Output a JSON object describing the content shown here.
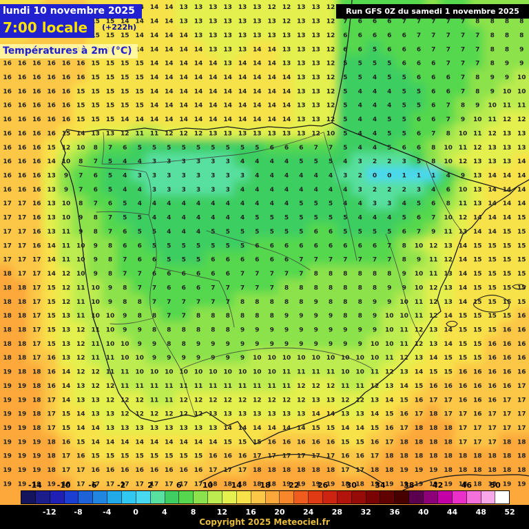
{
  "header": {
    "date_line": "lundi 10 novembre 2025",
    "time_line": "7:00 locale",
    "forecast_offset": "(+222h)",
    "variable_line": "Températures à 2m (°C)",
    "run_info": "Run GFS 0Z du samedi 1 novembre 2025"
  },
  "footer": {
    "copyright": "Copyright 2025 Meteociel.fr",
    "scale_top_labels": [
      -14,
      -10,
      -6,
      -2,
      2,
      6,
      10,
      14,
      18,
      22,
      26,
      30,
      34,
      38,
      42,
      46,
      50
    ],
    "scale_bottom_labels": [
      -12,
      -8,
      -4,
      0,
      4,
      8,
      12,
      16,
      20,
      24,
      28,
      32,
      36,
      40,
      44,
      48,
      52
    ]
  },
  "scale": {
    "min": -16,
    "max": 52,
    "step": 2,
    "colors": [
      "#14145e",
      "#1c1c8a",
      "#2020b4",
      "#1c3ed0",
      "#1e62d8",
      "#2086e0",
      "#22aae8",
      "#30c8f0",
      "#48d8f0",
      "#58e0a0",
      "#3ece62",
      "#55d84e",
      "#8ce24c",
      "#bcec50",
      "#e4f04e",
      "#f8e24a",
      "#fcc646",
      "#fca83a",
      "#f8862a",
      "#f05c1e",
      "#e03a14",
      "#cc2410",
      "#b2140c",
      "#960a08",
      "#7a0404",
      "#600202",
      "#460000",
      "#5a004e",
      "#8e007a",
      "#c200a6",
      "#ea30c8",
      "#f470da",
      "#f8a8e8",
      "#ffffff"
    ]
  },
  "colors": {
    "header_bg": "#2121cf",
    "header_text": "#ffffff",
    "time_text": "#ffe400",
    "variable_text": "#2121cf",
    "run_bg": "#000000",
    "run_text": "#ffffff",
    "number_text": "#222222",
    "copyright_text": "#e6bb3c",
    "band_bg": "#000000"
  },
  "chart_data": {
    "type": "heatmap",
    "title": "Températures à 2m (°C)",
    "units": "°C",
    "grid_cols": 36,
    "grid_rows": 36,
    "rows": [
      "15 15 15 16 16 16 15 15 14 14 14 14 13 13 13 13 13 13 12 12 13 13 12 7 7 6 6 7 7 8 7 7 8 8 8 8",
      "15 15 16 16 16 16 15 15 14 14 14 14 13 13 13 13 13 13 13 12 13 13 12 7 6 6 6 7 7 7 7 7 8 8 8 8",
      "15 15 16 16 16 16 15 15 15 14 14 14 14 13 13 13 13 13 13 13 13 13 12 6 6 6 6 6 7 7 7 7 7 8 8 8",
      "16 16 16 16 16 16 15 15 15 14 14 14 14 14 13 13 13 14 14 13 13 13 12 6 6 5 6 6 6 7 7 7 7 8 8 9",
      "16 16 16 16 16 16 15 15 15 15 14 14 14 14 14 13 14 14 14 13 13 13 12 5 5 5 5 6 6 6 7 7 7 8 9 9",
      "16 16 16 16 16 16 15 15 15 15 14 14 14 14 14 14 14 14 14 14 13 13 12 5 5 4 5 5 6 6 6 7 8 9 9 10",
      "16 16 16 16 16 15 15 15 15 15 14 14 14 14 14 14 14 14 14 14 13 13 12 5 4 4 4 5 5 6 6 7 8 9 10 10",
      "16 16 16 16 16 15 15 15 15 15 14 14 14 14 14 14 14 14 14 14 13 13 12 5 4 4 4 5 5 6 7 8 9 10 11 11",
      "16 16 16 16 16 15 15 15 14 14 14 14 14 14 14 14 14 14 14 14 13 13 12 5 4 4 5 5 6 6 7 9 10 11 12 12",
      "16 16 16 16 15 14 13 13 12 11 11 12 12 12 13 13 13 13 13 13 13 12 10 5 4 4 5 5 6 7 8 10 11 12 13 13",
      "16 16 16 15 12 10 8 7 6 5 5 5 5 5 5 5 5 5 6 6 6 7 7 5 4 4 5 6 6 8 10 11 12 13 13 13",
      "16 16 16 14 10 8 7 5 4 4 3 3 3 3 3 3 4 4 4 4 5 5 5 4 3 2 2 3 5 8 10 12 13 13 13 14",
      "16 16 16 13 9 7 6 5 4 3 3 3 3 3 3 3 3 4 4 4 4 4 4 3 2 0 0 1 1 1 4 9 13 14 14 14",
      "16 16 16 13 9 7 6 5 4 4 3 3 3 3 3 3 4 4 4 4 4 4 4 4 3 2 2 2 3 4 6 10 13 14 14 14",
      "17 17 16 13 10 8 7 6 5 4 4 4 4 4 4 4 4 4 4 4 5 5 5 4 4 3 3 4 5 6 8 11 13 14 14 14",
      "17 17 16 13 10 9 8 7 5 5 4 4 4 4 4 4 4 5 5 5 5 5 5 5 4 4 4 5 6 7 10 12 14 14 14 15",
      "17 17 16 13 11 9 8 7 6 5 5 4 4 4 5 5 5 5 5 5 5 6 6 5 5 5 5 6 7 9 11 13 14 14 15 15",
      "17 17 16 14 11 10 9 8 6 6 5 5 5 5 5 5 5 6 6 6 6 6 6 6 6 6 7 8 10 12 13 14 15 15 15 15",
      "17 17 17 14 11 10 9 8 7 6 6 5 5 5 6 6 6 6 6 6 7 7 7 7 7 7 7 8 9 11 12 14 15 15 15 15",
      "18 17 17 14 12 10 9 8 7 7 6 6 6 6 6 6 7 7 7 7 7 8 8 8 8 8 8 9 10 11 13 14 15 15 15 15",
      "18 18 17 15 12 11 10 9 8 7 7 6 6 6 7 7 7 7 7 8 8 8 8 8 8 8 9 9 10 12 13 14 15 15 15 15",
      "18 18 17 15 12 11 10 9 8 8 7 7 7 7 7 7 8 8 8 8 8 9 8 8 8 9 9 10 11 12 13 14 15 15 15 15",
      "18 18 17 15 13 11 10 10 9 8 8 7 7 8 8 8 8 8 8 9 9 9 9 8 8 9 10 10 11 12 14 15 15 15 15 16",
      "18 18 17 15 13 12 11 10 9 9 8 8 8 8 8 8 9 9 9 9 9 9 9 9 9 9 10 11 12 13 14 15 15 15 16 16",
      "18 18 17 15 13 12 11 10 10 9 9 8 8 9 9 9 9 9 9 9 9 9 9 9 9 10 10 11 12 13 14 15 15 16 16 16",
      "18 18 17 16 13 12 11 11 10 10 9 9 9 9 9 9 9 10 10 10 10 10 10 10 10 10 11 12 13 14 15 15 15 16 16 16",
      "19 18 18 16 14 12 12 11 11 10 10 10 10 10 10 10 10 10 10 11 11 11 11 10 10 11 12 13 14 15 15 16 16 16 16 16",
      "19 19 18 16 14 13 12 12 11 11 11 11 11 11 11 11 11 11 11 11 12 12 12 11 11 12 13 14 15 16 16 16 16 16 16 17",
      "19 19 18 17 14 13 13 12 12 12 11 11 12 12 12 12 12 12 12 12 12 13 13 12 12 13 14 15 16 17 17 16 16 16 17 17",
      "19 19 18 17 15 14 13 13 12 12 12 12 12 12 13 13 13 13 13 13 13 14 14 13 13 14 15 16 17 18 17 17 16 17 17 17",
      "19 19 18 17 15 14 14 13 13 13 13 13 13 13 13 14 14 14 14 14 14 15 15 14 14 15 16 17 18 18 18 17 17 17 17 17",
      "19 19 19 18 16 15 14 14 14 14 14 14 14 14 14 15 15 15 16 16 16 16 16 15 15 16 17 18 18 18 18 17 17 17 18 18",
      "19 19 19 18 17 16 15 15 15 15 15 15 15 15 16 16 16 17 17 17 17 17 17 16 16 17 18 18 18 18 18 18 18 18 18 18",
      "19 19 19 18 17 17 16 16 16 16 16 16 16 16 17 17 17 18 18 18 18 18 18 17 17 18 18 19 19 19 18 18 18 18 18 18",
      "19 19 19 19 18 17 17 17 17 17 17 17 17 17 18 18 18 18 18 19 19 19 19 18 18 19 19 19 19 19 19 18 18 18 19 19",
      "19 19 19 19 18 18 18 18 18 18 18 18 18 18 19 19 19 19 19 19 19 19 19 19 19 19 19 20 20 19 19 19 19 19 19 19"
    ]
  }
}
